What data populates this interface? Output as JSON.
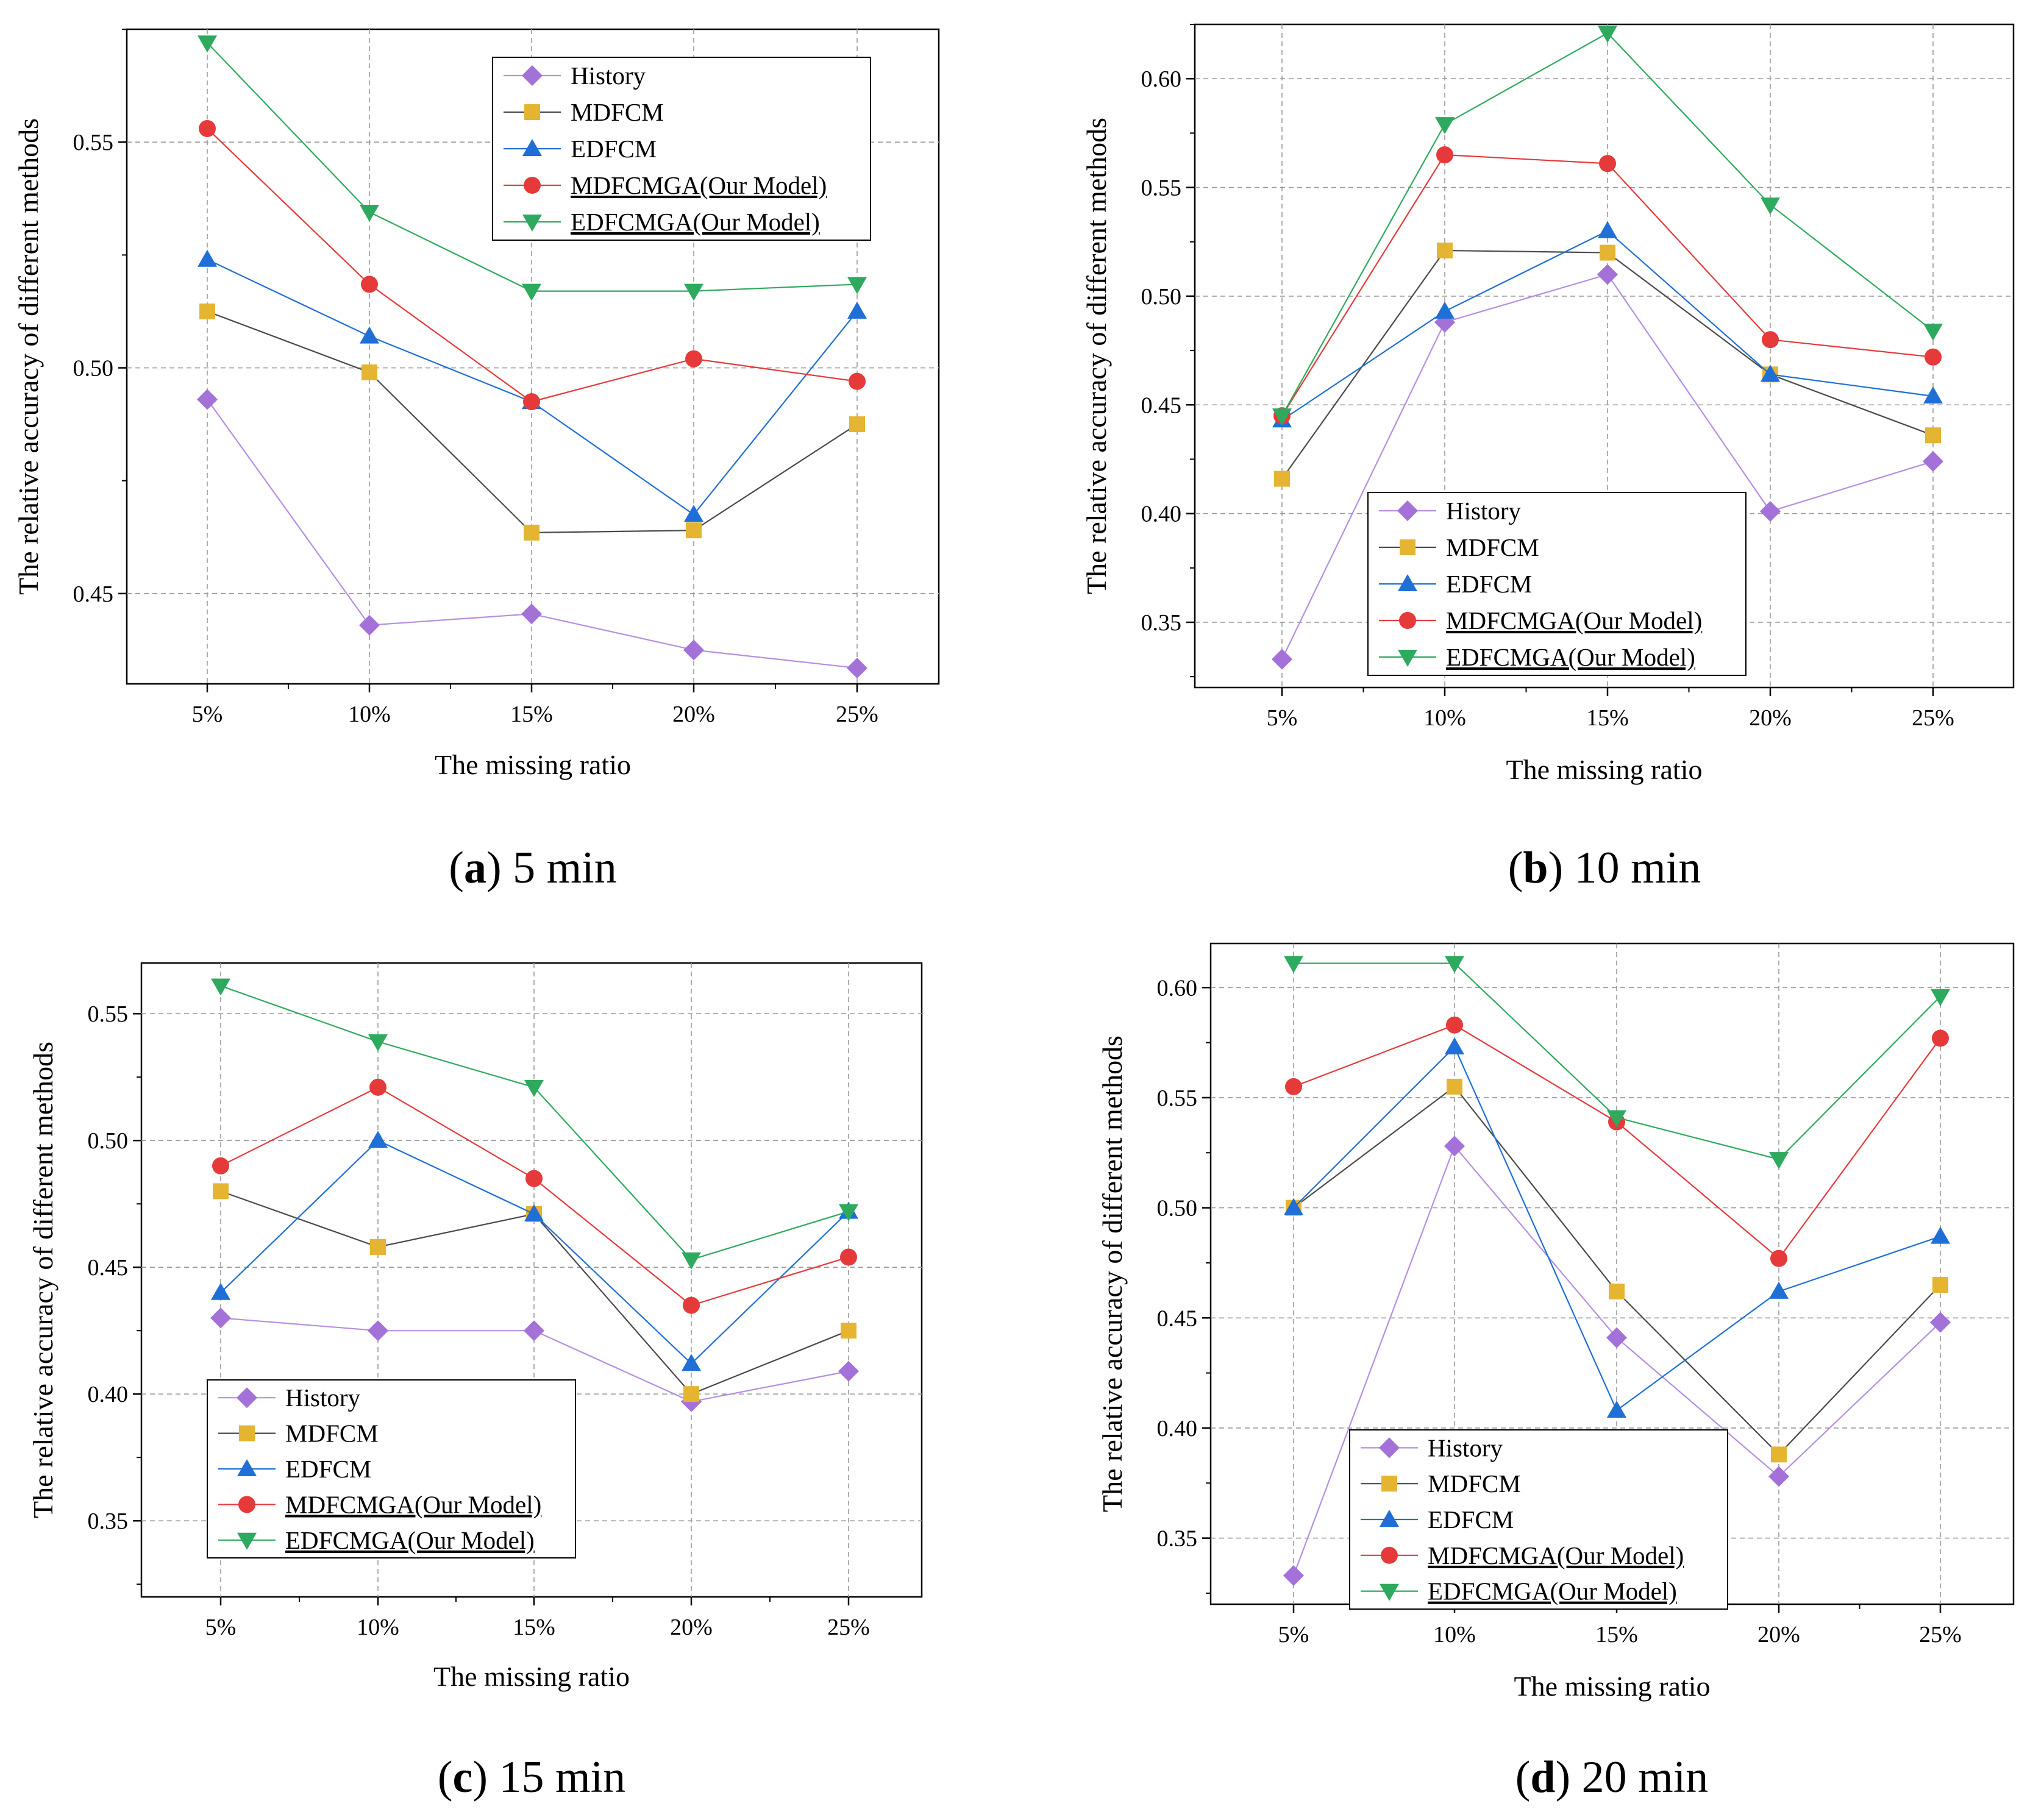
{
  "chart_data": [
    {
      "type": "line",
      "panel": "a",
      "caption": {
        "letter": "a",
        "text": "5 min"
      },
      "xlabel": "The missing ratio",
      "ylabel": "The relative accuracy of different methods",
      "categories": [
        "5%",
        "10%",
        "15%",
        "20%",
        "25%"
      ],
      "ylim": [
        0.43,
        0.575
      ],
      "yticks": [
        "0.45",
        "0.50",
        "0.55"
      ],
      "legend_position": "top-right",
      "series": [
        {
          "name": "History",
          "values": [
            0.493,
            0.443,
            0.4455,
            0.4375,
            0.4335
          ]
        },
        {
          "name": "MDFCM",
          "values": [
            0.5125,
            0.499,
            0.4635,
            0.464,
            0.4875
          ]
        },
        {
          "name": "EDFCM",
          "values": [
            0.524,
            0.507,
            0.4925,
            0.4675,
            0.5125
          ]
        },
        {
          "name": "MDFCMGA(Our Model)",
          "values": [
            0.553,
            0.5185,
            0.4925,
            0.502,
            0.497
          ]
        },
        {
          "name": "EDFCMGA(Our Model)",
          "values": [
            0.572,
            0.5345,
            0.517,
            0.517,
            0.5185
          ]
        }
      ]
    },
    {
      "type": "line",
      "panel": "b",
      "caption": {
        "letter": "b",
        "text": "10 min"
      },
      "xlabel": "The missing ratio",
      "ylabel": "The relative accuracy of different methods",
      "categories": [
        "5%",
        "10%",
        "15%",
        "20%",
        "25%"
      ],
      "ylim": [
        0.32,
        0.625
      ],
      "yticks": [
        "0.35",
        "0.40",
        "0.45",
        "0.50",
        "0.55",
        "0.60"
      ],
      "legend_position": "bottom-left",
      "series": [
        {
          "name": "History",
          "values": [
            0.333,
            0.488,
            0.51,
            0.401,
            0.424
          ]
        },
        {
          "name": "MDFCM",
          "values": [
            0.416,
            0.521,
            0.52,
            0.464,
            0.436
          ]
        },
        {
          "name": "EDFCM",
          "values": [
            0.443,
            0.493,
            0.53,
            0.464,
            0.454
          ]
        },
        {
          "name": "MDFCMGA(Our Model)",
          "values": [
            0.445,
            0.565,
            0.561,
            0.48,
            0.472
          ]
        },
        {
          "name": "EDFCMGA(Our Model)",
          "values": [
            0.445,
            0.579,
            0.621,
            0.542,
            0.484
          ]
        }
      ]
    },
    {
      "type": "line",
      "panel": "c",
      "caption": {
        "letter": "c",
        "text": "15 min"
      },
      "xlabel": "The missing ratio",
      "ylabel": "The relative accuracy of different methods",
      "categories": [
        "5%",
        "10%",
        "15%",
        "20%",
        "25%"
      ],
      "ylim": [
        0.32,
        0.57
      ],
      "yticks": [
        "0.35",
        "0.40",
        "0.45",
        "0.50",
        "0.55"
      ],
      "legend_position": "bottom-left",
      "series": [
        {
          "name": "History",
          "values": [
            0.43,
            0.425,
            0.425,
            0.397,
            0.409
          ]
        },
        {
          "name": "MDFCM",
          "values": [
            0.48,
            0.458,
            0.471,
            0.4,
            0.425
          ]
        },
        {
          "name": "EDFCM",
          "values": [
            0.44,
            0.5,
            0.471,
            0.412,
            0.472
          ]
        },
        {
          "name": "MDFCMGA(Our Model)",
          "values": [
            0.49,
            0.521,
            0.485,
            0.435,
            0.454
          ]
        },
        {
          "name": "EDFCMGA(Our Model)",
          "values": [
            0.561,
            0.539,
            0.521,
            0.453,
            0.472
          ]
        }
      ]
    },
    {
      "type": "line",
      "panel": "d",
      "caption": {
        "letter": "d",
        "text": "20 min"
      },
      "xlabel": "The missing ratio",
      "ylabel": "The relative accuracy of different methods",
      "categories": [
        "5%",
        "10%",
        "15%",
        "20%",
        "25%"
      ],
      "ylim": [
        0.32,
        0.62
      ],
      "yticks": [
        "0.35",
        "0.40",
        "0.45",
        "0.50",
        "0.55",
        "0.60"
      ],
      "legend_position": "bottom-left",
      "series": [
        {
          "name": "History",
          "values": [
            0.333,
            0.528,
            0.441,
            0.378,
            0.448
          ]
        },
        {
          "name": "MDFCM",
          "values": [
            0.5,
            0.555,
            0.462,
            0.388,
            0.465
          ]
        },
        {
          "name": "EDFCM",
          "values": [
            0.5,
            0.573,
            0.408,
            0.462,
            0.487
          ]
        },
        {
          "name": "MDFCMGA(Our Model)",
          "values": [
            0.555,
            0.583,
            0.539,
            0.477,
            0.577
          ]
        },
        {
          "name": "EDFCMGA(Our Model)",
          "values": [
            0.611,
            0.611,
            0.541,
            0.522,
            0.596
          ]
        }
      ]
    }
  ],
  "styles": {
    "History": {
      "color": "#a371d8",
      "marker": "diamond",
      "line": "#b58fe0"
    },
    "MDFCM": {
      "color": "#e5b430",
      "marker": "square",
      "line": "#4a4a4a"
    },
    "EDFCM": {
      "color": "#1f6fd6",
      "marker": "triangle-up",
      "line": "#1f6fd6"
    },
    "MDFCMGA(Our Model)": {
      "color": "#e63a3a",
      "marker": "circle",
      "line": "#e63a3a"
    },
    "EDFCMGA(Our Model)": {
      "color": "#2eaa5e",
      "marker": "triangle-down",
      "line": "#2eaa5e"
    }
  }
}
